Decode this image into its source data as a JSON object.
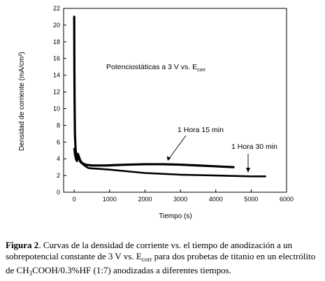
{
  "chart_data": {
    "type": "line",
    "xlabel": "Tiempo (s)",
    "ylabel": "Densidad de corriente (mA/cm²)",
    "xlim": [
      -300,
      6000
    ],
    "ylim": [
      0,
      22
    ],
    "xticks": [
      0,
      1000,
      2000,
      3000,
      4000,
      5000,
      6000
    ],
    "yticks": [
      0,
      2,
      4,
      6,
      8,
      10,
      12,
      14,
      16,
      18,
      20,
      22
    ],
    "title_annotation": {
      "main": "Potenciostáticas a 3 V vs. E",
      "sub": "corr"
    },
    "series": [
      {
        "name": "1 Hora 15 min",
        "x": [
          0,
          5,
          10,
          20,
          40,
          60,
          80,
          100,
          130,
          160,
          200,
          260,
          320,
          400,
          500,
          700,
          900,
          1200,
          1500,
          2000,
          2500,
          3000,
          3500,
          4000,
          4500
        ],
        "y": [
          21.0,
          15.0,
          11.0,
          7.0,
          5.0,
          4.3,
          4.2,
          4.6,
          4.3,
          3.9,
          3.6,
          3.4,
          3.3,
          3.25,
          3.2,
          3.2,
          3.2,
          3.25,
          3.3,
          3.35,
          3.35,
          3.3,
          3.2,
          3.1,
          3.0
        ]
      },
      {
        "name": "1 Hora 30 min",
        "x": [
          0,
          20,
          50,
          80,
          100,
          130,
          160,
          200,
          260,
          320,
          400,
          500,
          700,
          1000,
          1500,
          2000,
          2500,
          3000,
          3500,
          4000,
          4500,
          5000,
          5400
        ],
        "y": [
          5.2,
          4.4,
          3.9,
          3.7,
          4.3,
          4.0,
          3.7,
          3.5,
          3.3,
          3.1,
          2.9,
          2.85,
          2.8,
          2.7,
          2.5,
          2.3,
          2.2,
          2.1,
          2.05,
          2.0,
          1.95,
          1.9,
          1.9
        ]
      }
    ],
    "annotations": [
      {
        "text": "1 Hora 15 min"
      },
      {
        "text": "1 Hora 30 min"
      }
    ]
  },
  "caption": {
    "label": "Figura 2",
    "text_a": ". Curvas de la densidad de corriente vs. el tiempo de anodización a un sobrepotencial constante de 3 V vs. E",
    "sub_corr": "corr",
    "text_b": " para dos probetas de titanio en un electrólito de CH",
    "sub_3": "3",
    "text_c": "COOH/0.3%HF (1:7) anodizadas a diferentes tiempos."
  }
}
